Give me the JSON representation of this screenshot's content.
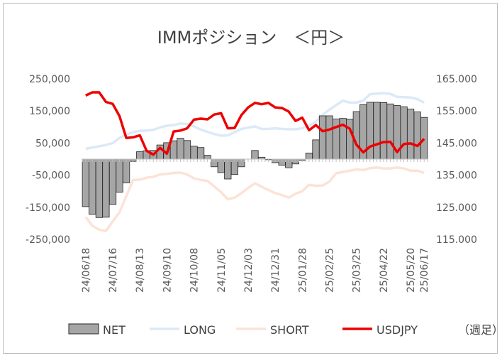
{
  "chart_data": {
    "type": "bar+line",
    "title": "IMMポジション　＜円＞",
    "unit_note": "（週足）",
    "y_left": {
      "min": -250000,
      "max": 250000,
      "step": 100000,
      "tick_labels": [
        "250,000",
        "150,000",
        "50,000",
        "-50,000",
        "-150,000",
        "-250,000"
      ]
    },
    "y_right": {
      "min": 115,
      "max": 165,
      "step": 10,
      "tick_labels": [
        "165.000",
        "155.000",
        "145.000",
        "135.000",
        "125.000",
        "115.000"
      ]
    },
    "x_labels": [
      "24/06/18",
      "24/07/16",
      "24/08/13",
      "24/09/10",
      "24/10/08",
      "24/11/05",
      "24/12/03",
      "24/12/31",
      "25/01/28",
      "25/02/25",
      "25/03/25",
      "25/04/22",
      "25/05/20",
      "25/06/17"
    ],
    "legend": [
      "NET",
      "LONG",
      "SHORT",
      "USDJPY"
    ],
    "colors": {
      "net_fill": "#a6a6a6",
      "net_stroke": "#262626",
      "long": "#dce9f7",
      "short": "#fbe3d6",
      "usdjpy": "#ee0000"
    },
    "series": [
      {
        "name": "NET",
        "kind": "bar",
        "axis": "left",
        "values": [
          -148000,
          -172000,
          -182000,
          -181000,
          -141000,
          -103000,
          -74000,
          -7000,
          23000,
          26000,
          27000,
          44000,
          51000,
          57000,
          65000,
          58000,
          40000,
          36000,
          12000,
          -24000,
          -42000,
          -62000,
          -48000,
          -24000,
          0,
          27000,
          6000,
          -2000,
          -11000,
          -19000,
          -27000,
          -15000,
          -4000,
          19000,
          60000,
          135000,
          135000,
          125000,
          127000,
          124000,
          148000,
          170000,
          177000,
          177000,
          176000,
          172000,
          167000,
          163000,
          156000,
          147000,
          130000
        ]
      },
      {
        "name": "LONG",
        "kind": "line",
        "axis": "left",
        "values": [
          32000,
          36000,
          40000,
          44000,
          50000,
          66000,
          76000,
          84000,
          88000,
          89000,
          91000,
          99000,
          104000,
          106000,
          111000,
          109000,
          102000,
          92000,
          85000,
          78000,
          73000,
          74000,
          84000,
          94000,
          98000,
          102000,
          94000,
          94000,
          96000,
          94000,
          93000,
          93000,
          96000,
          104000,
          116000,
          138000,
          154000,
          168000,
          182000,
          176000,
          176000,
          182000,
          202000,
          204000,
          205000,
          203000,
          194000,
          193000,
          192000,
          187000,
          176000
        ]
      },
      {
        "name": "SHORT",
        "kind": "line",
        "axis": "left",
        "values": [
          -180000,
          -208000,
          -220000,
          -224000,
          -194000,
          -166000,
          -115000,
          -65000,
          -64000,
          -58000,
          -55000,
          -48000,
          -46000,
          -43000,
          -42000,
          -48000,
          -60000,
          -65000,
          -68000,
          -85000,
          -103000,
          -125000,
          -120000,
          -106000,
          -90000,
          -75000,
          -86000,
          -96000,
          -106000,
          -112000,
          -120000,
          -108000,
          -100000,
          -80000,
          -83000,
          -82000,
          -70000,
          -44000,
          -40000,
          -36000,
          -32000,
          -34000,
          -28000,
          -26000,
          -29000,
          -29000,
          -26000,
          -29000,
          -36000,
          -36000,
          -43000
        ]
      },
      {
        "name": "USDJPY",
        "kind": "line",
        "axis": "right",
        "values": [
          159.8,
          160.8,
          160.8,
          157.8,
          157.2,
          153.4,
          146.6,
          146.8,
          147.4,
          142.6,
          141.4,
          143.5,
          141.7,
          148.6,
          148.9,
          149.6,
          152.3,
          152.6,
          152.4,
          153.9,
          154.3,
          149.6,
          149.7,
          153.7,
          156.1,
          157.5,
          157.1,
          157.5,
          156.1,
          155.9,
          154.8,
          151.9,
          152.9,
          149.0,
          150.6,
          148.7,
          149.2,
          150.0,
          150.7,
          149.5,
          144.5,
          142.1,
          143.9,
          144.6,
          145.3,
          145.4,
          142.2,
          144.7,
          144.9,
          144.1,
          146.3
        ]
      }
    ]
  }
}
